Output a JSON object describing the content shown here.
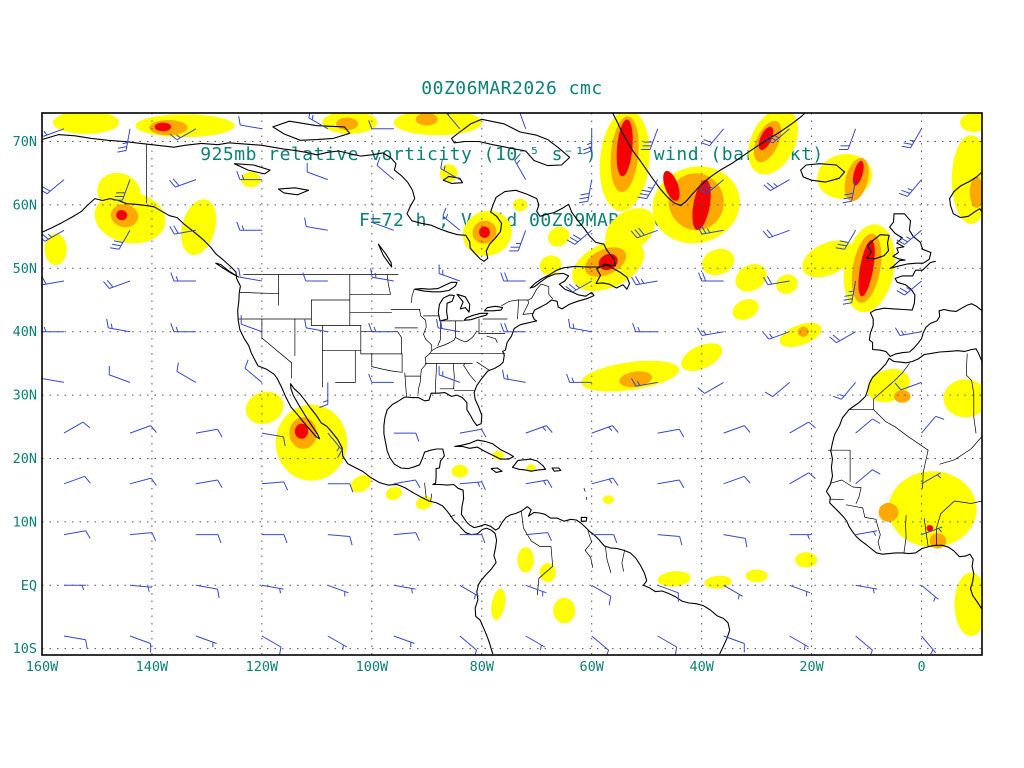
{
  "header": {
    "line1": "00Z06MAR2026 cmc",
    "line2": "925mb relative vorticity (10⁻⁵ s⁻¹) and wind (barb; kt)",
    "line3": "F=72 h ; Valid 00Z09MAR2026"
  },
  "chart_data": {
    "type": "heatmap",
    "title": "00Z06MAR2026 cmc",
    "subtitle": "925mb relative vorticity (10-5 s-1) and wind (barb; kt)",
    "forecast_line": "F=72 h ; Valid 00Z09MAR2026",
    "model": "cmc",
    "level": "925mb",
    "field": "relative vorticity",
    "wind_units": "kt",
    "init_time": "00Z06MAR2026",
    "forecast_hour": 72,
    "valid_time": "00Z09MAR2026",
    "grid": true,
    "lon_range": [
      -160,
      11
    ],
    "lat_range": [
      -11,
      74.5
    ],
    "lon_ticks": [
      {
        "value": -160,
        "label": "160W"
      },
      {
        "value": -140,
        "label": "140W"
      },
      {
        "value": -120,
        "label": "120W"
      },
      {
        "value": -100,
        "label": "100W"
      },
      {
        "value": -80,
        "label": "80W"
      },
      {
        "value": -60,
        "label": "60W"
      },
      {
        "value": -40,
        "label": "40W"
      },
      {
        "value": -20,
        "label": "20W"
      },
      {
        "value": 0,
        "label": "0"
      }
    ],
    "lat_ticks": [
      {
        "value": 70,
        "label": "70N"
      },
      {
        "value": 60,
        "label": "60N"
      },
      {
        "value": 50,
        "label": "50N"
      },
      {
        "value": 40,
        "label": "40N"
      },
      {
        "value": 30,
        "label": "30N"
      },
      {
        "value": 20,
        "label": "20N"
      },
      {
        "value": 10,
        "label": "10N"
      },
      {
        "value": 0,
        "label": "EQ"
      },
      {
        "value": -10,
        "label": "10S"
      }
    ],
    "shading_levels": [
      {
        "name": "weak",
        "color": "#ffff00"
      },
      {
        "name": "moderate",
        "color": "#ffa800"
      },
      {
        "name": "strong",
        "color": "#f40000"
      }
    ],
    "colors": {
      "coastline": "#000000",
      "wind_barb": "#3848c8",
      "text": "#0d8078",
      "grid": "#555555",
      "frame": "#000000"
    },
    "vorticity_regions_format": "[lon, lat, rx_deg, ry_deg, rotation_deg, level(1=yellow,2=orange,3=red)]",
    "vorticity_regions": [
      [
        -152,
        73,
        6,
        1.8,
        0,
        1
      ],
      [
        -146,
        62,
        4,
        3,
        20,
        1
      ],
      [
        -144,
        58,
        6.5,
        4,
        10,
        1
      ],
      [
        -134,
        72.5,
        9,
        1.8,
        0,
        1
      ],
      [
        -131.5,
        56.5,
        3,
        4.5,
        15,
        1
      ],
      [
        -157.5,
        53,
        2,
        2.5,
        0,
        1
      ],
      [
        -122,
        64,
        1.8,
        1.2,
        0,
        1
      ],
      [
        -104,
        73,
        5,
        1.8,
        0,
        1
      ],
      [
        -88,
        73,
        8,
        2,
        0,
        1
      ],
      [
        -86,
        65,
        1.6,
        1.4,
        0,
        1
      ],
      [
        -79,
        55.5,
        4.5,
        3.5,
        -20,
        1
      ],
      [
        -73,
        60,
        1.3,
        1,
        0,
        1
      ],
      [
        -67.5,
        50.5,
        2,
        1.5,
        -20,
        1
      ],
      [
        -66,
        55,
        2,
        1.5,
        -30,
        1
      ],
      [
        -57,
        50.5,
        7,
        3.5,
        -25,
        1
      ],
      [
        -53,
        56,
        5,
        3,
        -35,
        1
      ],
      [
        -54,
        67,
        4.5,
        8,
        5,
        1
      ],
      [
        -41,
        60,
        8,
        6,
        -15,
        1
      ],
      [
        -27,
        70,
        4,
        5.5,
        25,
        1
      ],
      [
        -14,
        64.5,
        5,
        3.5,
        -10,
        1
      ],
      [
        9,
        64,
        3.5,
        7,
        0,
        1
      ],
      [
        9.5,
        73,
        2.5,
        1.5,
        0,
        1
      ],
      [
        -9.5,
        50,
        4.5,
        7,
        10,
        1
      ],
      [
        -17,
        51.5,
        5,
        2.5,
        -25,
        1
      ],
      [
        -37,
        51,
        3,
        2,
        -20,
        1
      ],
      [
        -31,
        48.5,
        3,
        2,
        -30,
        1
      ],
      [
        -24.5,
        47.5,
        2,
        1.5,
        -20,
        1
      ],
      [
        -32,
        43.5,
        2.5,
        1.5,
        -25,
        1
      ],
      [
        -22,
        39.5,
        4,
        1.6,
        -20,
        1
      ],
      [
        -53,
        33,
        9,
        2.2,
        -8,
        1
      ],
      [
        -40,
        36,
        4,
        1.8,
        -25,
        1
      ],
      [
        -6,
        31.5,
        4,
        2.5,
        -20,
        1
      ],
      [
        8,
        29.5,
        4,
        3,
        0,
        1
      ],
      [
        -119.5,
        28,
        3.5,
        2.5,
        -20,
        1
      ],
      [
        -111,
        22.5,
        6.5,
        6,
        0,
        1
      ],
      [
        -102,
        16,
        2,
        1.2,
        -30,
        1
      ],
      [
        -96,
        14.5,
        1.5,
        1,
        -20,
        1
      ],
      [
        -90.5,
        13,
        1.5,
        1,
        -20,
        1
      ],
      [
        -84,
        18,
        1.5,
        1,
        0,
        1
      ],
      [
        -77,
        20.5,
        1,
        0.7,
        0,
        1
      ],
      [
        -71,
        18.5,
        0.9,
        0.6,
        0,
        1
      ],
      [
        -72,
        4,
        1.5,
        2,
        0,
        1
      ],
      [
        -68,
        2,
        1.5,
        1.5,
        0,
        1
      ],
      [
        -65,
        -4,
        2,
        2,
        0,
        1
      ],
      [
        -77,
        -3,
        1.2,
        2.5,
        10,
        1
      ],
      [
        -45,
        1,
        3,
        1.2,
        -5,
        1
      ],
      [
        -37,
        0.5,
        2.5,
        1,
        -5,
        1
      ],
      [
        -30,
        1.5,
        2,
        1,
        0,
        1
      ],
      [
        -21,
        4,
        2,
        1.2,
        0,
        1
      ],
      [
        2,
        12,
        8,
        6,
        0,
        1
      ],
      [
        9,
        -3,
        3,
        5,
        0,
        1
      ],
      [
        -57,
        13.5,
        1,
        0.7,
        0,
        1
      ],
      [
        -145,
        58.3,
        2.5,
        1.8,
        10,
        2
      ],
      [
        -137,
        72.2,
        3.5,
        1.2,
        0,
        2
      ],
      [
        -104.5,
        72.8,
        2,
        1,
        0,
        2
      ],
      [
        -90,
        73.5,
        2,
        1,
        0,
        2
      ],
      [
        -79.5,
        55.7,
        2.2,
        1.8,
        -20,
        2
      ],
      [
        -57.5,
        51,
        4,
        2,
        -25,
        2
      ],
      [
        -54,
        68,
        2.5,
        6,
        5,
        2
      ],
      [
        -41,
        60.5,
        5,
        4.5,
        -15,
        2
      ],
      [
        -28,
        70,
        2,
        3.5,
        25,
        2
      ],
      [
        -11.8,
        64,
        2,
        3.5,
        15,
        2
      ],
      [
        10,
        62,
        1.2,
        2.5,
        0,
        2
      ],
      [
        -10,
        50,
        2.5,
        5.5,
        10,
        2
      ],
      [
        -21.5,
        40,
        1,
        0.8,
        -20,
        2
      ],
      [
        -52,
        32.5,
        3,
        1.2,
        -8,
        2
      ],
      [
        -3.5,
        29.8,
        1.5,
        1,
        0,
        2
      ],
      [
        -112.5,
        24,
        2.5,
        2.5,
        0,
        2
      ],
      [
        -6,
        11.5,
        1.8,
        1.5,
        0,
        2
      ],
      [
        3,
        7,
        1.5,
        1.2,
        0,
        2
      ],
      [
        -145.5,
        58.4,
        1,
        0.8,
        10,
        3
      ],
      [
        -138,
        72.3,
        1.5,
        0.7,
        0,
        3
      ],
      [
        -79.5,
        55.7,
        1,
        0.9,
        -20,
        3
      ],
      [
        -57,
        51,
        1.8,
        1.2,
        -25,
        3
      ],
      [
        -54,
        69,
        1.4,
        4.5,
        5,
        3
      ],
      [
        -45.5,
        63,
        1.2,
        2.5,
        -20,
        3
      ],
      [
        -40,
        60,
        1.5,
        4,
        10,
        3
      ],
      [
        -28.3,
        70.5,
        1,
        2,
        25,
        3
      ],
      [
        -11.5,
        65,
        0.8,
        2,
        15,
        3
      ],
      [
        -10,
        50,
        1.2,
        4.5,
        10,
        3
      ],
      [
        -112.8,
        24.3,
        1.2,
        1.2,
        0,
        3
      ],
      [
        1.5,
        9,
        0.6,
        0.5,
        0,
        3
      ]
    ],
    "wind_barbs_format": "[lon, lat, wind_from_direction_deg, speed_kt]",
    "wind_barbs": [
      [
        -156,
        72,
        250,
        15
      ],
      [
        -144,
        72,
        190,
        25
      ],
      [
        -132,
        72,
        240,
        15
      ],
      [
        -120,
        72,
        280,
        10
      ],
      [
        -108,
        72,
        300,
        15
      ],
      [
        -96,
        72,
        270,
        10
      ],
      [
        -84,
        72,
        320,
        15
      ],
      [
        -72,
        72,
        340,
        20
      ],
      [
        -60,
        72,
        180,
        25
      ],
      [
        -48,
        72,
        200,
        30
      ],
      [
        -36,
        72,
        220,
        20
      ],
      [
        -24,
        72,
        230,
        25
      ],
      [
        -12,
        72,
        200,
        20
      ],
      [
        0,
        72,
        210,
        25
      ],
      [
        -156,
        64,
        230,
        20
      ],
      [
        -144,
        64,
        200,
        30
      ],
      [
        -132,
        64,
        250,
        20
      ],
      [
        -120,
        64,
        270,
        15
      ],
      [
        -108,
        64,
        290,
        10
      ],
      [
        -96,
        64,
        310,
        10
      ],
      [
        -84,
        64,
        300,
        15
      ],
      [
        -72,
        64,
        330,
        15
      ],
      [
        -60,
        64,
        190,
        30
      ],
      [
        -48,
        64,
        210,
        35
      ],
      [
        -36,
        64,
        230,
        30
      ],
      [
        -24,
        64,
        240,
        25
      ],
      [
        -12,
        64,
        190,
        30
      ],
      [
        0,
        64,
        220,
        25
      ],
      [
        -156,
        56,
        240,
        25
      ],
      [
        -144,
        56,
        210,
        30
      ],
      [
        -132,
        56,
        260,
        20
      ],
      [
        -120,
        56,
        270,
        15
      ],
      [
        -108,
        56,
        280,
        10
      ],
      [
        -96,
        56,
        290,
        10
      ],
      [
        -84,
        56,
        310,
        15
      ],
      [
        -72,
        56,
        200,
        25
      ],
      [
        -60,
        56,
        230,
        30
      ],
      [
        -48,
        56,
        250,
        30
      ],
      [
        -36,
        56,
        260,
        25
      ],
      [
        -24,
        56,
        250,
        20
      ],
      [
        -12,
        56,
        210,
        30
      ],
      [
        0,
        56,
        230,
        25
      ],
      [
        -156,
        48,
        260,
        20
      ],
      [
        -144,
        48,
        250,
        20
      ],
      [
        -132,
        48,
        270,
        15
      ],
      [
        -120,
        48,
        280,
        10
      ],
      [
        -108,
        48,
        270,
        10
      ],
      [
        -96,
        48,
        280,
        15
      ],
      [
        -84,
        48,
        290,
        15
      ],
      [
        -72,
        48,
        270,
        20
      ],
      [
        -60,
        48,
        240,
        25
      ],
      [
        -48,
        48,
        260,
        25
      ],
      [
        -36,
        48,
        270,
        20
      ],
      [
        -24,
        48,
        260,
        20
      ],
      [
        -12,
        48,
        190,
        35
      ],
      [
        0,
        48,
        230,
        25
      ],
      [
        -156,
        40,
        270,
        15
      ],
      [
        -144,
        40,
        280,
        15
      ],
      [
        -132,
        40,
        270,
        15
      ],
      [
        -120,
        40,
        290,
        10
      ],
      [
        -108,
        40,
        280,
        10
      ],
      [
        -96,
        40,
        270,
        15
      ],
      [
        -84,
        40,
        280,
        20
      ],
      [
        -72,
        40,
        270,
        20
      ],
      [
        -60,
        40,
        280,
        15
      ],
      [
        -48,
        40,
        270,
        15
      ],
      [
        -36,
        40,
        260,
        15
      ],
      [
        -24,
        40,
        250,
        15
      ],
      [
        -12,
        40,
        240,
        20
      ],
      [
        0,
        40,
        260,
        15
      ],
      [
        -156,
        32,
        280,
        10
      ],
      [
        -144,
        32,
        290,
        10
      ],
      [
        -132,
        32,
        300,
        10
      ],
      [
        -120,
        32,
        310,
        10
      ],
      [
        -108,
        32,
        180,
        15
      ],
      [
        -96,
        32,
        270,
        10
      ],
      [
        -84,
        32,
        290,
        15
      ],
      [
        -72,
        32,
        280,
        15
      ],
      [
        -60,
        32,
        270,
        15
      ],
      [
        -48,
        32,
        260,
        15
      ],
      [
        -36,
        32,
        240,
        10
      ],
      [
        -24,
        32,
        230,
        10
      ],
      [
        -12,
        32,
        220,
        15
      ],
      [
        0,
        32,
        250,
        10
      ],
      [
        -156,
        24,
        60,
        10
      ],
      [
        -144,
        24,
        70,
        10
      ],
      [
        -132,
        24,
        80,
        10
      ],
      [
        -120,
        24,
        100,
        10
      ],
      [
        -108,
        24,
        140,
        15
      ],
      [
        -96,
        24,
        90,
        10
      ],
      [
        -84,
        24,
        80,
        10
      ],
      [
        -72,
        24,
        70,
        15
      ],
      [
        -60,
        24,
        70,
        15
      ],
      [
        -48,
        24,
        80,
        10
      ],
      [
        -36,
        24,
        70,
        10
      ],
      [
        -24,
        24,
        60,
        10
      ],
      [
        -12,
        24,
        50,
        10
      ],
      [
        0,
        24,
        40,
        10
      ],
      [
        -156,
        16,
        70,
        10
      ],
      [
        -144,
        16,
        75,
        10
      ],
      [
        -132,
        16,
        80,
        10
      ],
      [
        -120,
        16,
        85,
        10
      ],
      [
        -108,
        16,
        90,
        10
      ],
      [
        -96,
        16,
        80,
        10
      ],
      [
        -84,
        16,
        85,
        15
      ],
      [
        -72,
        16,
        80,
        15
      ],
      [
        -60,
        16,
        75,
        15
      ],
      [
        -48,
        16,
        80,
        10
      ],
      [
        -36,
        16,
        70,
        10
      ],
      [
        -24,
        16,
        60,
        10
      ],
      [
        -12,
        16,
        50,
        10
      ],
      [
        0,
        16,
        60,
        5
      ],
      [
        -156,
        8,
        80,
        10
      ],
      [
        -144,
        8,
        85,
        10
      ],
      [
        -132,
        8,
        90,
        10
      ],
      [
        -120,
        8,
        90,
        10
      ],
      [
        -108,
        8,
        95,
        10
      ],
      [
        -96,
        8,
        85,
        10
      ],
      [
        -84,
        8,
        90,
        10
      ],
      [
        -72,
        8,
        85,
        10
      ],
      [
        -60,
        8,
        90,
        10
      ],
      [
        -48,
        8,
        95,
        10
      ],
      [
        -36,
        8,
        100,
        10
      ],
      [
        -24,
        8,
        90,
        5
      ],
      [
        -12,
        8,
        80,
        5
      ],
      [
        0,
        8,
        70,
        5
      ],
      [
        -156,
        0,
        90,
        5
      ],
      [
        -144,
        0,
        95,
        5
      ],
      [
        -132,
        0,
        100,
        10
      ],
      [
        -120,
        0,
        100,
        5
      ],
      [
        -108,
        0,
        110,
        5
      ],
      [
        -96,
        0,
        100,
        5
      ],
      [
        -84,
        0,
        120,
        5
      ],
      [
        -72,
        0,
        110,
        5
      ],
      [
        -60,
        0,
        120,
        10
      ],
      [
        -48,
        0,
        110,
        10
      ],
      [
        -36,
        0,
        120,
        5
      ],
      [
        -24,
        0,
        110,
        5
      ],
      [
        -12,
        0,
        100,
        5
      ],
      [
        0,
        0,
        130,
        5
      ],
      [
        -156,
        -8,
        100,
        10
      ],
      [
        -144,
        -8,
        110,
        10
      ],
      [
        -132,
        -8,
        110,
        5
      ],
      [
        -120,
        -8,
        120,
        10
      ],
      [
        -108,
        -8,
        120,
        5
      ],
      [
        -96,
        -8,
        110,
        5
      ],
      [
        -84,
        -8,
        130,
        10
      ],
      [
        -72,
        -8,
        120,
        5
      ],
      [
        -60,
        -8,
        130,
        10
      ],
      [
        -48,
        -8,
        120,
        10
      ],
      [
        -36,
        -8,
        110,
        10
      ],
      [
        -24,
        -8,
        120,
        5
      ],
      [
        -12,
        -8,
        130,
        10
      ],
      [
        0,
        -8,
        140,
        5
      ]
    ]
  }
}
